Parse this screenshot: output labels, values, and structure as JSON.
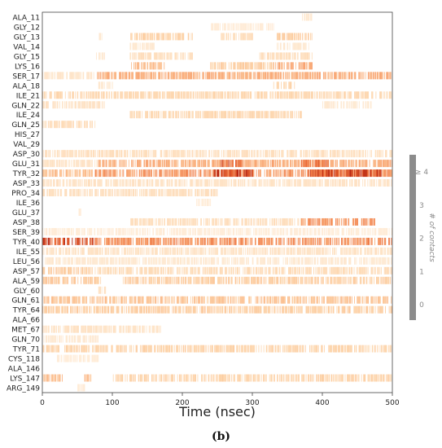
{
  "panel_label": "(b)",
  "chart_data": {
    "type": "heatmap",
    "xlabel": "Time (nsec)",
    "xlim": [
      0,
      500
    ],
    "x_ticks": [
      0,
      100,
      200,
      300,
      400,
      500
    ],
    "colorbar": {
      "label": "# of contacts",
      "ticks": [
        "0",
        "1",
        "2",
        "3",
        "≥ 4"
      ],
      "range": [
        0,
        4
      ],
      "colormap": [
        "#fff2e3",
        "#fdd3a8",
        "#f8a06b",
        "#e8602c",
        "#b11b0a"
      ]
    },
    "residues": [
      "ALA_11",
      "GLY_12",
      "GLY_13",
      "VAL_14",
      "GLY_15",
      "LYS_16",
      "SER_17",
      "ALA_18",
      "ILE_21",
      "GLN_22",
      "ILE_24",
      "GLN_25",
      "HIS_27",
      "VAL_29",
      "ASP_30",
      "GLU_31",
      "TYR_32",
      "ASP_33",
      "PRO_34",
      "ILE_36",
      "GLU_37",
      "ASP_38",
      "SER_39",
      "TYR_40",
      "ILE_55",
      "LEU_56",
      "ASP_57",
      "ALA_59",
      "GLY_60",
      "GLN_61",
      "TYR_64",
      "ALA_66",
      "MET_67",
      "GLN_70",
      "TYR_71",
      "CYS_118",
      "ALA_146",
      "LYS_147",
      "ARG_149"
    ],
    "contact_segments": {
      "ALA_11": [
        [
          370,
          385,
          0.3
        ]
      ],
      "GLY_12": [
        [
          240,
          330,
          0.2
        ]
      ],
      "GLY_13": [
        [
          80,
          85,
          0.3
        ],
        [
          125,
          215,
          0.9
        ],
        [
          255,
          300,
          0.6
        ],
        [
          335,
          385,
          1.0
        ]
      ],
      "VAL_14": [
        [
          125,
          160,
          0.3
        ],
        [
          335,
          380,
          0.3
        ]
      ],
      "GLY_15": [
        [
          75,
          90,
          0.3
        ],
        [
          125,
          215,
          0.6
        ],
        [
          310,
          385,
          0.6
        ]
      ],
      "LYS_16": [
        [
          125,
          175,
          1.3
        ],
        [
          240,
          330,
          1.0
        ],
        [
          330,
          385,
          1.7
        ]
      ],
      "SER_17": [
        [
          0,
          75,
          0.4
        ],
        [
          78,
          500,
          1.6
        ]
      ],
      "ALA_18": [
        [
          80,
          100,
          0.3
        ],
        [
          330,
          360,
          0.9
        ]
      ],
      "ILE_21": [
        [
          0,
          500,
          0.8
        ]
      ],
      "GLN_22": [
        [
          0,
          90,
          0.5
        ],
        [
          400,
          470,
          0.3
        ]
      ],
      "ILE_24": [
        [
          125,
          370,
          0.8
        ]
      ],
      "GLN_25": [
        [
          0,
          75,
          0.7
        ]
      ],
      "HIS_27": [],
      "VAL_29": [],
      "ASP_30": [
        [
          0,
          500,
          0.6
        ]
      ],
      "GLU_31": [
        [
          0,
          80,
          0.5
        ],
        [
          80,
          500,
          1.6
        ],
        [
          255,
          285,
          2.8
        ],
        [
          370,
          410,
          2.6
        ]
      ],
      "TYR_32": [
        [
          0,
          75,
          1.3
        ],
        [
          75,
          500,
          2.0
        ],
        [
          245,
          300,
          3.4
        ],
        [
          380,
          485,
          3.2
        ]
      ],
      "ASP_33": [
        [
          0,
          500,
          0.5
        ]
      ],
      "PRO_34": [
        [
          0,
          250,
          0.6
        ]
      ],
      "ILE_36": [
        [
          220,
          240,
          0.2
        ]
      ],
      "GLU_37": [
        [
          50,
          55,
          0.2
        ]
      ],
      "ASP_38": [
        [
          125,
          370,
          0.6
        ],
        [
          370,
          475,
          2.0
        ]
      ],
      "SER_39": [
        [
          0,
          500,
          0.2
        ]
      ],
      "TYR_40": [
        [
          0,
          75,
          3.2
        ],
        [
          75,
          500,
          2.1
        ]
      ],
      "ILE_55": [
        [
          0,
          500,
          0.5
        ]
      ],
      "LEU_56": [
        [
          0,
          500,
          0.3
        ]
      ],
      "ASP_57": [
        [
          0,
          75,
          1.1
        ],
        [
          75,
          500,
          0.7
        ]
      ],
      "ALA_59": [
        [
          0,
          85,
          1.1
        ],
        [
          115,
          500,
          1.0
        ]
      ],
      "GLY_60": [
        [
          80,
          90,
          0.5
        ]
      ],
      "GLN_61": [
        [
          0,
          500,
          1.2
        ]
      ],
      "TYR_64": [
        [
          0,
          500,
          1.0
        ]
      ],
      "ALA_66": [],
      "MET_67": [
        [
          0,
          170,
          0.5
        ]
      ],
      "GLN_70": [
        [
          0,
          80,
          0.3
        ]
      ],
      "TYR_71": [
        [
          0,
          500,
          0.9
        ]
      ],
      "CYS_118": [
        [
          20,
          80,
          0.2
        ]
      ],
      "ALA_146": [],
      "LYS_147": [
        [
          0,
          30,
          1.3
        ],
        [
          60,
          70,
          1.3
        ],
        [
          100,
          500,
          0.9
        ]
      ],
      "ARG_149": [
        [
          50,
          60,
          0.2
        ]
      ]
    }
  }
}
